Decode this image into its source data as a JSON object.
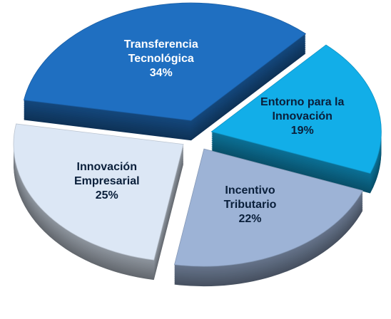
{
  "chart_data": {
    "type": "pie",
    "categories": [
      "Transferencia Tecnológica",
      "Entorno para la Innovación",
      "Incentivo Tributario",
      "Innovación Empresarial"
    ],
    "values": [
      34,
      19,
      22,
      25
    ],
    "value_labels": [
      "34%",
      "19%",
      "22%",
      "25%"
    ],
    "colors": [
      "#1f6fc1",
      "#12aee8",
      "#9db3d6",
      "#dce7f5"
    ],
    "exploded": true,
    "three_d": true
  }
}
